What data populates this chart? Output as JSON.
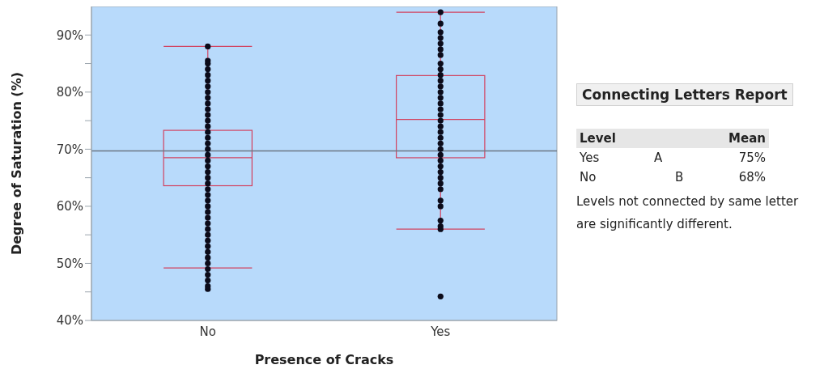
{
  "chart_data": [
    {
      "type": "box",
      "xlabel": "Presence of Cracks",
      "ylabel": "Degree of Saturation (%)",
      "categories": [
        "No",
        "Yes"
      ],
      "ylim": [
        40,
        95
      ],
      "yticks": [
        {
          "value": 40,
          "label": "40%"
        },
        {
          "value": 45,
          "label": null
        },
        {
          "value": 50,
          "label": "50%"
        },
        {
          "value": 55,
          "label": null
        },
        {
          "value": 60,
          "label": "60%"
        },
        {
          "value": 65,
          "label": null
        },
        {
          "value": 70,
          "label": "70%"
        },
        {
          "value": 75,
          "label": null
        },
        {
          "value": 80,
          "label": "80%"
        },
        {
          "value": 85,
          "label": null
        },
        {
          "value": 90,
          "label": "90%"
        }
      ],
      "marker": "circle",
      "ref_lines": [
        {
          "axis": "y",
          "value": 69.7,
          "color": "#6b7785"
        }
      ],
      "series": [
        {
          "type": "box",
          "color": "#d2425f",
          "boxes": [
            {
              "low": 49.2,
              "q1": 63.6,
              "median": 68.5,
              "q3": 73.3,
              "high": 88
            },
            {
              "low": 56,
              "q1": 68.5,
              "median": 75.2,
              "q3": 82.9,
              "high": 94
            }
          ]
        },
        {
          "type": "scatter",
          "color": "#0b0b1a",
          "x": [
            "No",
            "No",
            "No",
            "No",
            "No",
            "No",
            "No",
            "No",
            "No",
            "No",
            "No",
            "No",
            "No",
            "No",
            "No",
            "No",
            "No",
            "No",
            "No",
            "No",
            "No",
            "No",
            "No",
            "No",
            "No",
            "No",
            "No",
            "No",
            "No",
            "No",
            "No",
            "No",
            "No",
            "No",
            "No",
            "No",
            "No",
            "No",
            "No",
            "No",
            "No",
            "No",
            "No",
            "Yes",
            "Yes",
            "Yes",
            "Yes",
            "Yes",
            "Yes",
            "Yes",
            "Yes",
            "Yes",
            "Yes",
            "Yes",
            "Yes",
            "Yes",
            "Yes",
            "Yes",
            "Yes",
            "Yes",
            "Yes",
            "Yes",
            "Yes",
            "Yes",
            "Yes",
            "Yes",
            "Yes",
            "Yes",
            "Yes",
            "Yes",
            "Yes",
            "Yes",
            "Yes",
            "Yes",
            "Yes",
            "Yes",
            "Yes",
            "Yes",
            "Yes"
          ],
          "values": [
            88,
            85.5,
            85,
            84,
            83,
            82,
            81,
            80,
            79,
            78,
            77,
            76,
            75,
            74,
            73,
            72,
            71,
            70,
            69,
            68,
            67,
            66,
            65,
            64,
            63,
            62,
            61,
            60,
            59,
            58,
            57,
            56,
            55,
            54,
            53,
            52,
            51,
            50,
            49,
            48,
            47,
            46,
            45.5,
            94,
            92,
            90.5,
            89.5,
            88.5,
            87.5,
            86.5,
            85,
            84,
            83,
            82,
            81,
            80,
            79,
            78,
            77,
            76,
            75,
            74,
            73,
            72,
            71,
            70,
            69,
            68,
            67,
            66,
            65,
            64,
            63,
            61,
            60,
            57.5,
            56.5,
            56,
            44.2
          ]
        }
      ]
    },
    {
      "type": "other",
      "title": "Connecting Letters Report",
      "categories": [
        "Yes",
        "No"
      ],
      "value_labels": [
        "75%",
        "68%"
      ],
      "annotations": [
        "Level",
        "Mean",
        "A",
        "B",
        "Levels not connected by same letter are significantly different."
      ]
    }
  ]
}
